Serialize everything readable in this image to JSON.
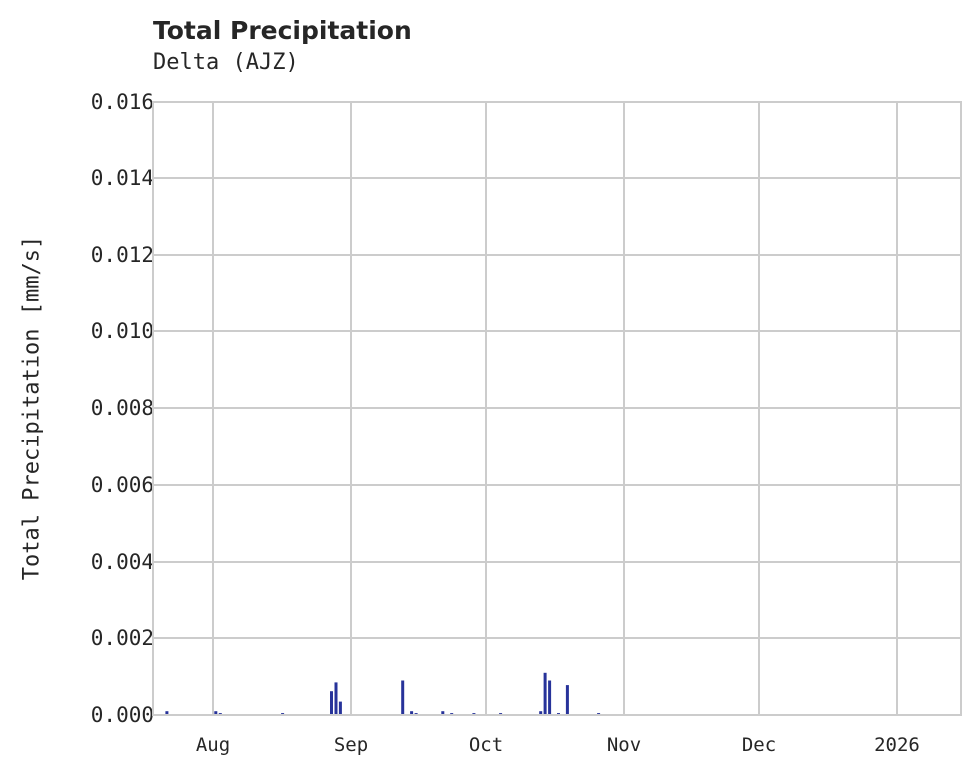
{
  "header": {
    "title": "Total Precipitation",
    "subtitle": "Delta (AJZ)"
  },
  "chart_data": {
    "type": "bar",
    "title": "Total Precipitation",
    "subtitle": "Delta (AJZ)",
    "xlabel": "",
    "ylabel": "Total Precipitation [mm/s]",
    "ylim": [
      0,
      0.016
    ],
    "xlim": [
      "2025-07-18",
      "2026-01-16"
    ],
    "grid": true,
    "legend": null,
    "bar_color": "#27339a",
    "yticks": [
      "0.000",
      "0.002",
      "0.004",
      "0.006",
      "0.008",
      "0.010",
      "0.012",
      "0.014",
      "0.016"
    ],
    "xticks": [
      "Aug",
      "Sep",
      "Oct",
      "Nov",
      "Dec",
      "2026"
    ],
    "x": [
      "2025-07-21",
      "2025-08-01",
      "2025-08-02",
      "2025-08-16",
      "2025-08-27",
      "2025-08-28",
      "2025-08-29",
      "2025-09-12",
      "2025-09-14",
      "2025-09-15",
      "2025-09-21",
      "2025-09-23",
      "2025-09-28",
      "2025-10-04",
      "2025-10-13",
      "2025-10-14",
      "2025-10-15",
      "2025-10-17",
      "2025-10-19",
      "2025-10-26"
    ],
    "values": [
      0.0001,
      0.0001,
      5e-05,
      5e-05,
      0.00062,
      0.00085,
      0.00035,
      0.0009,
      0.0001,
      5e-05,
      0.0001,
      5e-05,
      5e-05,
      5e-05,
      0.0001,
      0.0011,
      0.0009,
      5e-05,
      0.00078,
      5e-05
    ]
  }
}
